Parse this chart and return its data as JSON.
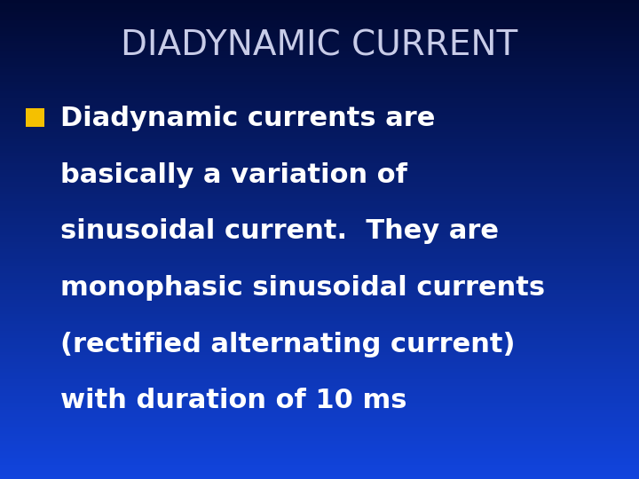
{
  "title": "DIADYNAMIC CURRENT",
  "title_color": "#c8cce8",
  "title_fontsize": 28,
  "bg_color_top": "#000830",
  "bg_color_mid": "#0033bb",
  "bg_color_bottom": "#0044cc",
  "bullet_color": "#f5c000",
  "bullet_text_color": "#ffffff",
  "bullet_fontsize": 22,
  "bullet_lines": [
    "Diadynamic currents are",
    "basically a variation of",
    "sinusoidal current.  They are",
    "monophasic sinusoidal currents",
    "(rectified alternating current)",
    "with duration of 10 ms"
  ],
  "fig_width": 7.2,
  "fig_height": 5.4,
  "dpi": 100
}
